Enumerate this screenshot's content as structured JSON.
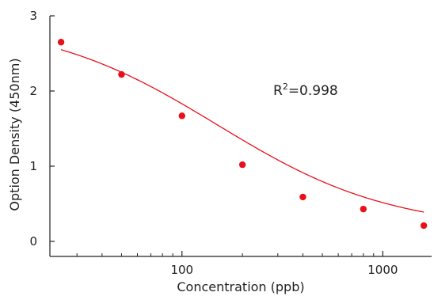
{
  "chart_data": {
    "type": "scatter",
    "xlabel": "Concentration  (ppb)",
    "ylabel": "Option Density  (450nm)",
    "x_scale": "log",
    "xlim": [
      22,
      1750
    ],
    "ylim": [
      -0.2,
      3
    ],
    "x_ticks": [
      100,
      1000
    ],
    "x_tick_labels": [
      "100",
      "1000"
    ],
    "y_ticks": [
      0,
      1,
      2,
      3
    ],
    "y_tick_labels": [
      "0",
      "1",
      "2",
      "3"
    ],
    "annotation": {
      "base": "R",
      "sup": "2",
      "rest": "=0.998"
    },
    "series": [
      {
        "x": [
          25,
          50,
          100,
          200,
          400,
          800,
          1600
        ],
        "y": [
          2.65,
          2.22,
          1.67,
          1.02,
          0.59,
          0.43,
          0.21
        ]
      }
    ],
    "fit_curve": {
      "type": "four-parameter logistic",
      "top": 2.95,
      "bottom": 0.15,
      "ic50": 150,
      "hill": 1.0
    },
    "colors": {
      "points": "#e8111a",
      "curve": "#e8111a",
      "axis": "#222222"
    }
  }
}
